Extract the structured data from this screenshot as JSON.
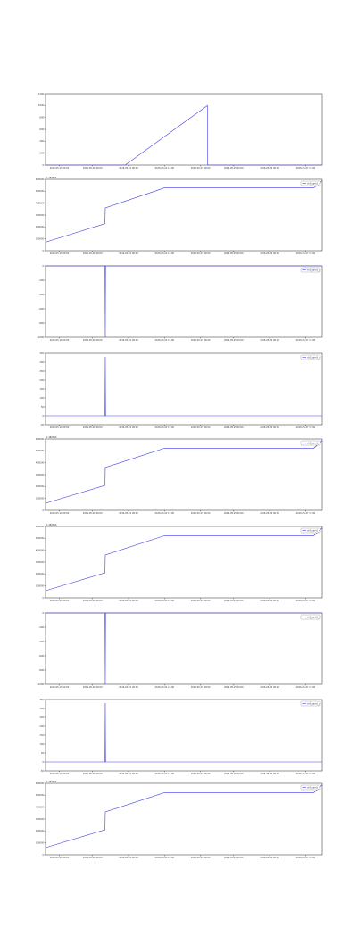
{
  "colors": {
    "series": "#3a3ae6",
    "axis": "#222222",
    "background": "#ffffff"
  },
  "chart_data": [
    {
      "type": "line",
      "title": "",
      "xlabel": "",
      "ylabel": "",
      "offset_label": "",
      "legend": [],
      "grid": false,
      "xlim": [
        0,
        1
      ],
      "ylim": [
        0,
        1200
      ],
      "yticks": [
        0,
        200,
        400,
        600,
        800,
        1000,
        1200
      ],
      "ytick_labels": [
        "0",
        "200",
        "400",
        "600",
        "800",
        "1000",
        "1200"
      ],
      "xtick_labels": [
        "2016-05-19 00:00",
        "2016-05-20 06:00",
        "2016-05-21 06:00",
        "2016-05-22 12:00",
        "2016-05-23 18:00",
        "2016-05-25 00:00",
        "2016-05-26 06:00",
        "2016-05-27 12:00"
      ],
      "xtick_pos": [
        0.05,
        0.17,
        0.3,
        0.43,
        0.56,
        0.68,
        0.81,
        0.94
      ],
      "x": [
        0,
        0.288,
        0.585,
        0.586,
        1.0
      ],
      "y": [
        0,
        0,
        1000,
        0,
        0
      ]
    },
    {
      "type": "line",
      "title": "",
      "xlabel": "",
      "ylabel": "",
      "offset_label": "1.4805e9",
      "legend": [
        "ch1_sym1_a"
      ],
      "legend_placement": "top-right",
      "grid": false,
      "xlim": [
        0,
        1
      ],
      "ylim": [
        0,
        1
      ],
      "yticks": [
        0,
        0.167,
        0.333,
        0.5,
        0.667,
        0.833,
        1
      ],
      "ytick_labels": [
        "0",
        "100000",
        "200000",
        "300000",
        "400000",
        "500000",
        "600000"
      ],
      "xtick_labels": [
        "2016-05-19 00:00",
        "2016-05-20 06:00",
        "2016-05-21 06:00",
        "2016-05-22 12:00",
        "2016-05-23 18:00",
        "2016-05-25 00:00",
        "2016-05-26 06:00",
        "2016-05-27 12:00"
      ],
      "xtick_pos": [
        0.05,
        0.17,
        0.3,
        0.43,
        0.56,
        0.68,
        0.81,
        0.94
      ],
      "x": [
        0,
        0.215,
        0.216,
        0.43,
        0.97,
        1.0
      ],
      "y": [
        0.12,
        0.38,
        0.6,
        0.88,
        0.88,
        0.98
      ]
    },
    {
      "type": "line",
      "title": "",
      "xlabel": "",
      "ylabel": "",
      "offset_label": "",
      "legend": [
        "ch1_sym1_b"
      ],
      "legend_placement": "top-right",
      "grid": false,
      "xlim": [
        0,
        1
      ],
      "ylim": [
        -1000,
        0
      ],
      "yticks": [
        -1000,
        -800,
        -600,
        -400,
        -200,
        0
      ],
      "ytick_labels": [
        "-1000",
        "-800",
        "-600",
        "-400",
        "-200",
        "0"
      ],
      "xtick_labels": [
        "2016-05-19 00:00",
        "2016-05-20 06:00",
        "2016-05-21 06:00",
        "2016-05-22 12:00",
        "2016-05-23 18:00",
        "2016-05-25 00:00",
        "2016-05-26 06:00",
        "2016-05-27 12:00"
      ],
      "xtick_pos": [
        0.05,
        0.17,
        0.3,
        0.43,
        0.56,
        0.68,
        0.81,
        0.94
      ],
      "x": [
        0,
        0.215,
        0.216,
        0.217,
        1.0
      ],
      "y": [
        0,
        0,
        -1000,
        0,
        0
      ]
    },
    {
      "type": "line",
      "title": "",
      "xlabel": "",
      "ylabel": "",
      "offset_label": "",
      "legend": [
        "ch1_sym1_c"
      ],
      "legend_placement": "top-right",
      "grid": false,
      "xlim": [
        0,
        1
      ],
      "ylim": [
        -50,
        350
      ],
      "yticks": [
        -50,
        0,
        50,
        100,
        150,
        200,
        250,
        300,
        350
      ],
      "ytick_labels": [
        "-50",
        "0",
        "50",
        "100",
        "150",
        "200",
        "250",
        "300",
        "350"
      ],
      "xtick_labels": [
        "2016-05-19 00:00",
        "2016-05-20 06:00",
        "2016-05-21 06:00",
        "2016-05-22 12:00",
        "2016-05-23 18:00",
        "2016-05-25 00:00",
        "2016-05-26 06:00",
        "2016-05-27 12:00"
      ],
      "xtick_pos": [
        0.05,
        0.17,
        0.3,
        0.43,
        0.56,
        0.68,
        0.81,
        0.94
      ],
      "x": [
        0,
        0.215,
        0.216,
        0.217,
        1.0
      ],
      "y": [
        0,
        0,
        330,
        0,
        0
      ]
    },
    {
      "type": "line",
      "title": "",
      "xlabel": "",
      "ylabel": "",
      "offset_label": "1.4805e9",
      "legend": [
        "ch1_sym1_d"
      ],
      "legend_placement": "top-right",
      "grid": false,
      "xlim": [
        0,
        1
      ],
      "ylim": [
        0,
        1
      ],
      "yticks": [
        0,
        0.167,
        0.333,
        0.5,
        0.667,
        0.833,
        1
      ],
      "ytick_labels": [
        "0",
        "100000",
        "200000",
        "300000",
        "400000",
        "500000",
        "600000"
      ],
      "xtick_labels": [
        "2016-05-19 00:00",
        "2016-05-20 06:00",
        "2016-05-21 06:00",
        "2016-05-22 12:00",
        "2016-05-23 18:00",
        "2016-05-25 00:00",
        "2016-05-26 06:00",
        "2016-05-27 12:00"
      ],
      "xtick_pos": [
        0.05,
        0.17,
        0.3,
        0.43,
        0.56,
        0.68,
        0.81,
        0.94
      ],
      "x": [
        0,
        0.215,
        0.216,
        0.43,
        0.97,
        1.0
      ],
      "y": [
        0.1,
        0.35,
        0.6,
        0.87,
        0.87,
        0.98
      ]
    },
    {
      "type": "line",
      "title": "",
      "xlabel": "",
      "ylabel": "",
      "offset_label": "1.4805e9",
      "legend": [
        "ch1_sym1_e"
      ],
      "legend_placement": "top-right",
      "grid": false,
      "xlim": [
        0,
        1
      ],
      "ylim": [
        0,
        1
      ],
      "yticks": [
        0,
        0.167,
        0.333,
        0.5,
        0.667,
        0.833,
        1
      ],
      "ytick_labels": [
        "0",
        "100000",
        "200000",
        "300000",
        "400000",
        "500000",
        "600000"
      ],
      "xtick_labels": [
        "2016-05-19 00:00",
        "2016-05-20 06:00",
        "2016-05-21 06:00",
        "2016-05-22 12:00",
        "2016-05-23 18:00",
        "2016-05-25 00:00",
        "2016-05-26 06:00",
        "2016-05-27 12:00"
      ],
      "xtick_pos": [
        0.05,
        0.17,
        0.3,
        0.43,
        0.56,
        0.68,
        0.81,
        0.94
      ],
      "x": [
        0,
        0.215,
        0.216,
        0.43,
        0.97,
        1.0
      ],
      "y": [
        0.1,
        0.35,
        0.6,
        0.87,
        0.87,
        0.98
      ]
    },
    {
      "type": "line",
      "title": "",
      "xlabel": "",
      "ylabel": "",
      "offset_label": "",
      "legend": [
        "ch1_sym1_f"
      ],
      "legend_placement": "top-right",
      "grid": false,
      "xlim": [
        0,
        1
      ],
      "ylim": [
        -1000,
        0
      ],
      "yticks": [
        -1000,
        -800,
        -600,
        -400,
        -200,
        0
      ],
      "ytick_labels": [
        "-1000",
        "-800",
        "-600",
        "-400",
        "-200",
        "0"
      ],
      "xtick_labels": [
        "2016-05-19 00:00",
        "2016-05-20 06:00",
        "2016-05-21 06:00",
        "2016-05-22 12:00",
        "2016-05-23 18:00",
        "2016-05-25 00:00",
        "2016-05-26 06:00",
        "2016-05-27 12:00"
      ],
      "xtick_pos": [
        0.05,
        0.17,
        0.3,
        0.43,
        0.56,
        0.68,
        0.81,
        0.94
      ],
      "x": [
        0,
        0.215,
        0.216,
        0.217,
        1.0
      ],
      "y": [
        0,
        0,
        -1000,
        0,
        0
      ]
    },
    {
      "type": "line",
      "title": "",
      "xlabel": "",
      "ylabel": "",
      "offset_label": "",
      "legend": [
        "ch1_sym1_g"
      ],
      "legend_placement": "top-right",
      "grid": false,
      "xlim": [
        0,
        1
      ],
      "ylim": [
        -50,
        350
      ],
      "yticks": [
        -50,
        0,
        50,
        100,
        150,
        200,
        250,
        300,
        350
      ],
      "ytick_labels": [
        "-50",
        "0",
        "50",
        "100",
        "150",
        "200",
        "250",
        "300",
        "350"
      ],
      "xtick_labels": [
        "2016-05-19 00:00",
        "2016-05-20 06:00",
        "2016-05-21 06:00",
        "2016-05-22 12:00",
        "2016-05-23 18:00",
        "2016-05-25 00:00",
        "2016-05-26 06:00",
        "2016-05-27 12:00"
      ],
      "xtick_pos": [
        0.05,
        0.17,
        0.3,
        0.43,
        0.56,
        0.68,
        0.81,
        0.94
      ],
      "x": [
        0,
        0.215,
        0.216,
        0.217,
        1.0
      ],
      "y": [
        0,
        0,
        330,
        0,
        0
      ]
    },
    {
      "type": "line",
      "title": "",
      "xlabel": "",
      "ylabel": "",
      "offset_label": "1.4805e9",
      "legend": [
        "ch1_sym1_h"
      ],
      "legend_placement": "top-right",
      "grid": false,
      "xlim": [
        0,
        1
      ],
      "ylim": [
        0,
        1
      ],
      "yticks": [
        0,
        0.167,
        0.333,
        0.5,
        0.667,
        0.833,
        1
      ],
      "ytick_labels": [
        "0",
        "100000",
        "200000",
        "300000",
        "400000",
        "500000",
        "600000"
      ],
      "xtick_labels": [
        "2016-05-19 00:00",
        "2016-05-20 06:00",
        "2016-05-21 06:00",
        "2016-05-22 12:00",
        "2016-05-23 18:00",
        "2016-05-25 00:00",
        "2016-05-26 06:00",
        "2016-05-27 12:00"
      ],
      "xtick_pos": [
        0.05,
        0.17,
        0.3,
        0.43,
        0.56,
        0.68,
        0.81,
        0.94
      ],
      "x": [
        0,
        0.215,
        0.216,
        0.43,
        0.97,
        1.0
      ],
      "y": [
        0.1,
        0.35,
        0.6,
        0.87,
        0.87,
        0.98
      ]
    }
  ]
}
